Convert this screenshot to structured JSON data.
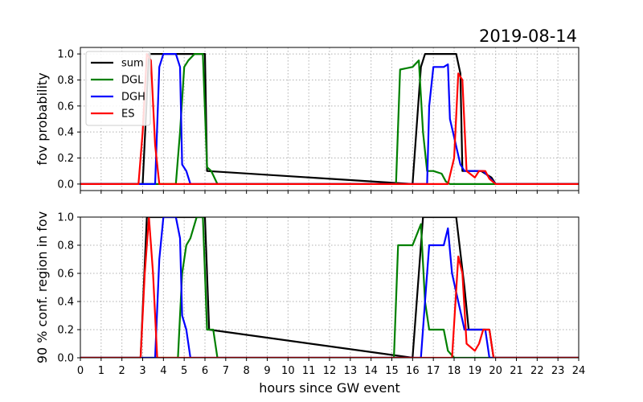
{
  "chart_data": {
    "type": "line",
    "title": "2019-08-14",
    "xlabel": "hours since GW event",
    "xlim": [
      0,
      24
    ],
    "x_ticks": [
      "0",
      "1",
      "2",
      "3",
      "4",
      "5",
      "6",
      "7",
      "8",
      "9",
      "10",
      "11",
      "12",
      "13",
      "14",
      "15",
      "16",
      "17",
      "18",
      "19",
      "20",
      "21",
      "22",
      "23",
      "24"
    ],
    "grid": true,
    "legend_position": "top-left",
    "legend": [
      "sum",
      "DGL",
      "DGH",
      "ES"
    ],
    "colors": {
      "sum": "#000000",
      "DGL": "#008000",
      "DGH": "#0000ff",
      "ES": "#ff0000"
    },
    "panels": [
      {
        "ylabel": "fov probability",
        "ylim": [
          -0.05,
          1.05
        ],
        "y_ticks": [
          "0.0",
          "0.2",
          "0.4",
          "0.6",
          "0.8",
          "1.0"
        ],
        "series": [
          {
            "name": "sum",
            "x": [
              0,
              3.0,
              3.3,
              6.0,
              6.1,
              16.0,
              16.4,
              16.6,
              18.1,
              18.3,
              18.4,
              19.0,
              19.3,
              19.8,
              20.0,
              24
            ],
            "y": [
              0,
              0,
              1.0,
              1.0,
              0.1,
              0,
              0.9,
              1.0,
              1.0,
              0.85,
              0.1,
              0.1,
              0.1,
              0.05,
              0,
              0
            ]
          },
          {
            "name": "DGL",
            "x": [
              0,
              4.6,
              4.8,
              5.0,
              5.2,
              5.5,
              5.9,
              6.1,
              6.3,
              6.6,
              15.2,
              15.4,
              16.0,
              16.3,
              16.5,
              16.7,
              17.0,
              17.4,
              17.6,
              17.8,
              24
            ],
            "y": [
              0,
              0,
              0.4,
              0.9,
              0.95,
              1.0,
              1.0,
              0.13,
              0.1,
              0,
              0,
              0.88,
              0.9,
              0.95,
              0.4,
              0.1,
              0.1,
              0.08,
              0.02,
              0,
              0
            ]
          },
          {
            "name": "DGH",
            "x": [
              0,
              3.6,
              3.8,
              4.0,
              4.6,
              4.8,
              4.9,
              5.1,
              5.3,
              16.7,
              16.8,
              17.0,
              17.5,
              17.7,
              17.8,
              18.3,
              18.5,
              19.4,
              19.7,
              20.0,
              24
            ],
            "y": [
              0,
              0,
              0.9,
              1.0,
              1.0,
              0.9,
              0.15,
              0.1,
              0,
              0,
              0.6,
              0.9,
              0.9,
              0.92,
              0.5,
              0.15,
              0.1,
              0.1,
              0.05,
              0,
              0
            ]
          },
          {
            "name": "ES",
            "x": [
              0,
              2.8,
              3.0,
              3.2,
              3.4,
              3.6,
              3.8,
              17.7,
              18.0,
              18.2,
              18.4,
              18.6,
              19.0,
              19.2,
              19.5,
              19.7,
              20.0,
              24
            ],
            "y": [
              0,
              0,
              0.4,
              1.0,
              0.95,
              0.3,
              0,
              0,
              0.2,
              0.85,
              0.8,
              0.1,
              0.05,
              0.1,
              0.1,
              0.04,
              0,
              0
            ]
          }
        ]
      },
      {
        "ylabel": "90 % conf. region in fov",
        "ylim": [
          0,
          1.0
        ],
        "y_ticks": [
          "0.0",
          "0.2",
          "0.4",
          "0.6",
          "0.8",
          "1.0"
        ],
        "series": [
          {
            "name": "sum",
            "x": [
              0,
              2.9,
              3.2,
              4.3,
              6.0,
              6.2,
              16.0,
              16.5,
              18.1,
              18.5,
              18.7,
              19.7,
              19.9,
              24
            ],
            "y": [
              0,
              0,
              1.0,
              1.0,
              1.0,
              0.2,
              0,
              1.0,
              1.0,
              0.5,
              0.2,
              0.2,
              0,
              0
            ]
          },
          {
            "name": "DGL",
            "x": [
              0,
              4.7,
              4.9,
              5.1,
              5.3,
              5.6,
              5.9,
              6.1,
              6.4,
              6.6,
              15.1,
              15.3,
              16.0,
              16.4,
              16.6,
              16.8,
              17.5,
              17.7,
              18.0,
              24
            ],
            "y": [
              0,
              0,
              0.6,
              0.8,
              0.85,
              1.0,
              1.0,
              0.2,
              0.2,
              0,
              0,
              0.8,
              0.8,
              0.95,
              0.4,
              0.2,
              0.2,
              0.05,
              0,
              0
            ]
          },
          {
            "name": "DGH",
            "x": [
              0,
              3.6,
              3.8,
              4.0,
              4.6,
              4.8,
              4.9,
              5.1,
              5.3,
              16.4,
              16.6,
              16.8,
              17.5,
              17.7,
              17.9,
              18.5,
              18.7,
              19.5,
              19.7,
              24
            ],
            "y": [
              0,
              0,
              0.7,
              1.0,
              1.0,
              0.85,
              0.3,
              0.2,
              0,
              0,
              0.4,
              0.8,
              0.8,
              0.92,
              0.6,
              0.2,
              0.2,
              0.2,
              0,
              0
            ]
          },
          {
            "name": "ES",
            "x": [
              0,
              2.9,
              3.1,
              3.3,
              3.5,
              3.7,
              17.7,
              17.9,
              18.2,
              18.4,
              18.6,
              19.0,
              19.2,
              19.4,
              19.7,
              19.9,
              24
            ],
            "y": [
              0,
              0,
              0.6,
              1.0,
              0.6,
              0,
              0,
              0,
              0.72,
              0.6,
              0.1,
              0.05,
              0.1,
              0.2,
              0.2,
              0,
              0
            ]
          }
        ]
      }
    ]
  }
}
